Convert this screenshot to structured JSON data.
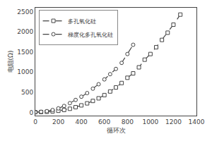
{
  "chart_data": {
    "type": "line",
    "xlabel": "循环次",
    "ylabel": "电阻(Ω)",
    "xlim": [
      0,
      1400
    ],
    "ylim": [
      -80,
      2600
    ],
    "xticks": [
      0,
      200,
      400,
      600,
      800,
      1000,
      1200,
      1400
    ],
    "yticks": [
      0,
      500,
      1000,
      1500,
      2000,
      2500
    ],
    "grid": false,
    "legend": "upper left",
    "series": [
      {
        "name": "多孔氧化硅",
        "color": "#444444",
        "marker": "square",
        "line_style": "dashed",
        "x": [
          0,
          50,
          100,
          150,
          200,
          250,
          300,
          350,
          400,
          450,
          500,
          550,
          600,
          650,
          700,
          750,
          800,
          850,
          900,
          950,
          1000,
          1050,
          1100,
          1150,
          1200,
          1260
        ],
        "values": [
          5,
          10,
          15,
          25,
          40,
          60,
          90,
          130,
          175,
          225,
          285,
          350,
          430,
          520,
          620,
          730,
          860,
          970,
          1120,
          1310,
          1450,
          1620,
          1800,
          1980,
          2180,
          2430
        ]
      },
      {
        "name": "梯度化多孔氧化硅",
        "color": "#444444",
        "marker": "circle",
        "line_style": "dashed",
        "x": [
          0,
          50,
          100,
          150,
          200,
          250,
          300,
          350,
          400,
          450,
          500,
          550,
          600,
          650,
          700,
          750,
          800,
          850
        ],
        "values": [
          5,
          15,
          30,
          60,
          100,
          160,
          230,
          310,
          390,
          480,
          590,
          700,
          820,
          950,
          1080,
          1230,
          1450,
          1680
        ]
      }
    ]
  }
}
